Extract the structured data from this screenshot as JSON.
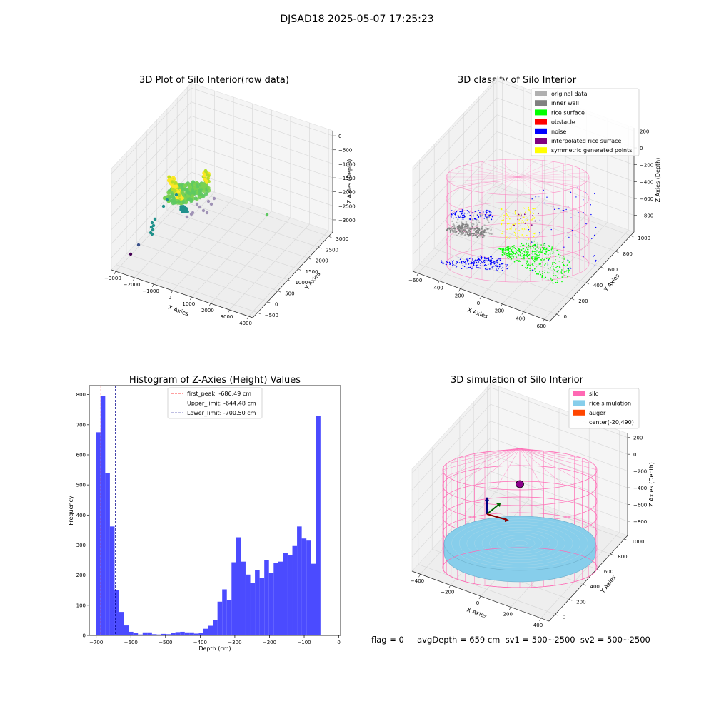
{
  "figure_title": "DJSAD18 2025-05-07 17:25:23",
  "status_text": "flag = 0     avgDepth = 659 cm  sv1 = 500~2500  sv2 = 500~2500",
  "colors": {
    "original_data": "#b0b0b0",
    "inner_wall": "#808080",
    "rice_surface": "#00ff00",
    "obstacle": "#ff0000",
    "noise": "#0000ff",
    "interpolated_rice_surface": "#800080",
    "symmetric_generated_points": "#ffff00",
    "silo": "#ff69b4",
    "rice_simulation": "#87ceeb",
    "auger": "#ff4500",
    "hist_bar": "#4b4bff",
    "first_peak_line": "#ff0000",
    "limit_line": "#00008b"
  },
  "chart_data": [
    {
      "type": "scatter",
      "subtype": "3d",
      "title": "3D Plot of Silo Interior(row data)",
      "xlabel": "X Axies",
      "ylabel": "Y Axies",
      "zlabel": "Z Axies (Depth)",
      "x_ticks": [
        "−3000",
        "−2000",
        "−1000",
        "0",
        "1000",
        "2000",
        "3000",
        "4000"
      ],
      "y_ticks": [
        "−500",
        "0",
        "500",
        "1000",
        "1500",
        "2000",
        "2500",
        "3000"
      ],
      "z_ticks": [
        "0",
        "−500",
        "−1000",
        "−1500",
        "−2000",
        "−2500",
        "−3000"
      ],
      "colormap": "viridis",
      "grid": true
    },
    {
      "type": "scatter",
      "subtype": "3d",
      "title": "3D classify of Silo Interior",
      "xlabel": "X Axies",
      "ylabel": "Y Axies",
      "zlabel": "Z Axies (Depth)",
      "x_ticks": [
        "−600",
        "−400",
        "−200",
        "0",
        "200",
        "400",
        "600"
      ],
      "y_ticks": [
        "0",
        "200",
        "400",
        "600",
        "800",
        "1000"
      ],
      "z_ticks": [
        "200",
        "0",
        "−200",
        "−400",
        "−600",
        "−800"
      ],
      "legend": [
        "original data",
        "inner wall",
        "rice surface",
        "obstacle",
        "noise",
        "interpolated rice surface",
        "symmetric generated points"
      ],
      "legend_position": "top-right",
      "grid": true
    },
    {
      "type": "bar",
      "subtype": "histogram",
      "title": "Histogram of Z-Axies (Height) Values",
      "xlabel": "Depth (cm)",
      "ylabel": "Frequency",
      "xlim": [
        -720,
        5
      ],
      "ylim": [
        0,
        830
      ],
      "x_ticks": [
        -700,
        -600,
        -500,
        -400,
        -300,
        -200,
        -100,
        0
      ],
      "y_ticks": [
        0,
        100,
        200,
        300,
        400,
        500,
        600,
        700,
        800
      ],
      "bin_start": -701,
      "bin_width": 13.5,
      "values": [
        675,
        795,
        540,
        362,
        150,
        78,
        33,
        12,
        9,
        3,
        10,
        10,
        4,
        3,
        5,
        4,
        8,
        11,
        12,
        10,
        10,
        6,
        8,
        22,
        32,
        50,
        112,
        153,
        118,
        243,
        326,
        245,
        202,
        175,
        218,
        192,
        250,
        207,
        240,
        245,
        275,
        268,
        297,
        362,
        322,
        315,
        238,
        730
      ],
      "reference_lines": [
        {
          "name": "first_peak: -686.49 cm",
          "x": -686.49,
          "style": "dashed",
          "color": "#ff0000"
        },
        {
          "name": "Upper_limit: -644.48 cm",
          "x": -644.48,
          "style": "dashed",
          "color": "#00008b"
        },
        {
          "name": "Lower_limit: -700.50 cm",
          "x": -700.5,
          "style": "dashed",
          "color": "#00008b"
        }
      ],
      "legend": [
        "first_peak: -686.49 cm",
        "Upper_limit: -644.48 cm",
        "Lower_limit: -700.50 cm"
      ],
      "legend_position": "top-center",
      "grid": false
    },
    {
      "type": "scatter",
      "subtype": "3d",
      "title": "3D simulation of Silo Interior",
      "xlabel": "X Axies",
      "ylabel": "Y Axies",
      "zlabel": "Z Axies (Depth)",
      "x_ticks": [
        "−400",
        "−200",
        "0",
        "200",
        "400"
      ],
      "y_ticks": [
        "0",
        "200",
        "400",
        "600",
        "800",
        "1000"
      ],
      "z_ticks": [
        "200",
        "0",
        "−200",
        "−400",
        "−600",
        "−800"
      ],
      "legend": [
        "silo",
        "rice simulation",
        "auger",
        "center(-20,490)"
      ],
      "legend_position": "top-right",
      "grid": true
    }
  ]
}
